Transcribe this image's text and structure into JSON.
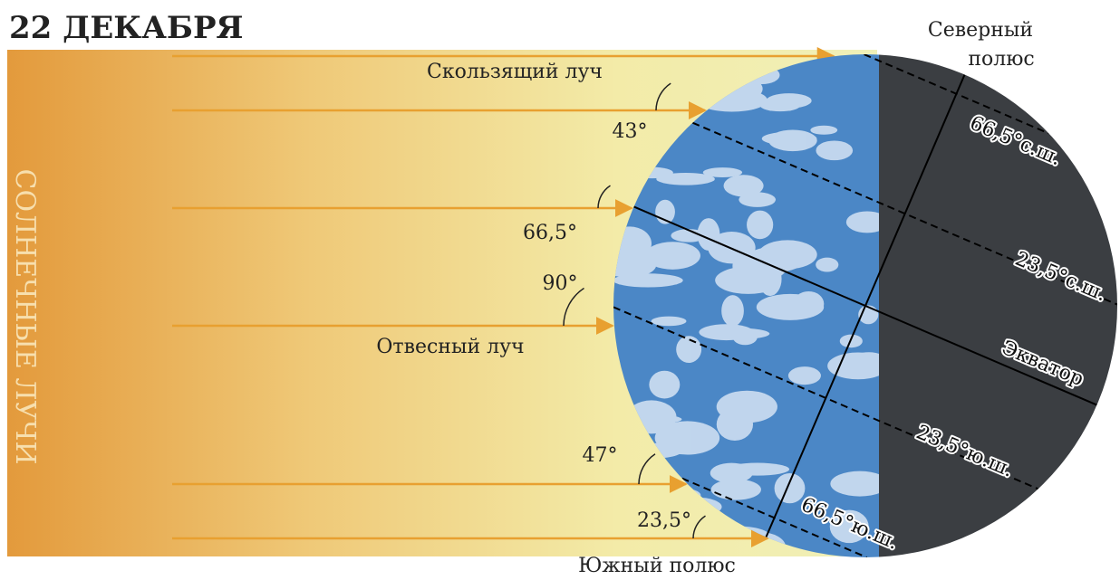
{
  "title": "22 ДЕКАБРЯ",
  "side_label": "СОЛНЕЧНЫЕ ЛУЧИ",
  "rays": {
    "grazing": "Скользящий луч",
    "vertical": "Отвесный луч"
  },
  "angles": [
    "43°",
    "66,5°",
    "90°",
    "47°",
    "23,5°"
  ],
  "poles": {
    "north": [
      "Северный",
      "полюс"
    ],
    "south": "Южный полюс"
  },
  "latitudes": [
    "66,5°с.ш.",
    "23,5°с.ш.",
    "Экватор",
    "23,5°ю.ш.",
    "66,5°ю.ш."
  ]
}
